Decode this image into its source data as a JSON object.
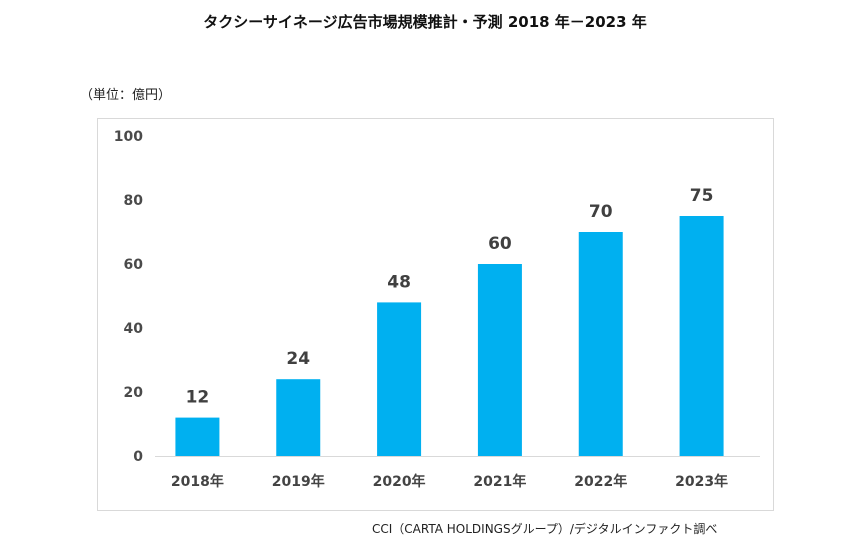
{
  "chart_data": {
    "type": "bar",
    "title": "タクシーサイネージ広告市場規模推計・予測 2018 年－2023 年",
    "unit_label": "（単位：億円）",
    "source": "CCI（CARTA HOLDINGSグループ）/デジタルインファクト調べ",
    "categories": [
      "2018年",
      "2019年",
      "2020年",
      "2021年",
      "2022年",
      "2023年"
    ],
    "values": [
      12,
      24,
      48,
      60,
      70,
      75
    ],
    "ylim": [
      0,
      100
    ],
    "yticks": [
      0,
      20,
      40,
      60,
      80,
      100
    ],
    "bar_color": "#00b0f0",
    "grid": false,
    "data_labels": true
  }
}
